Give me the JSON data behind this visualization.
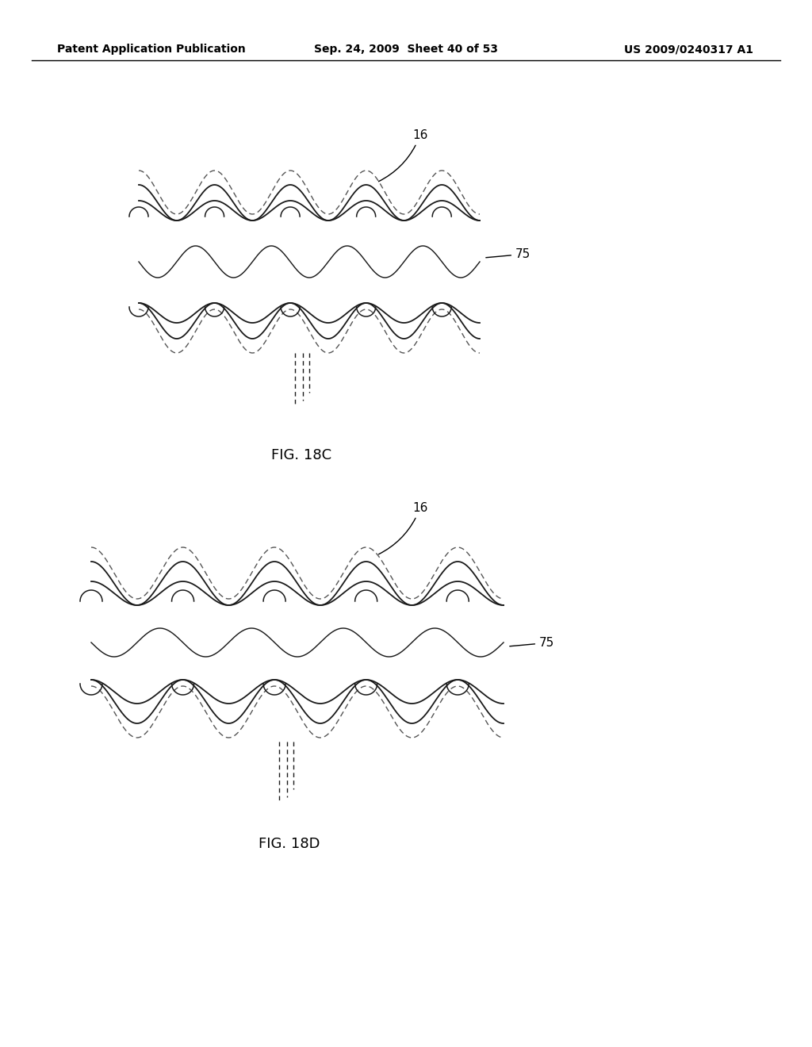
{
  "bg_color": "#ffffff",
  "line_color": "#1a1a1a",
  "dash_color": "#555555",
  "header_left": "Patent Application Publication",
  "header_mid": "Sep. 24, 2009  Sheet 40 of 53",
  "header_right": "US 2009/0240317 A1",
  "fig_label_C": "FIG. 18C",
  "fig_label_D": "FIG. 18D",
  "label_16": "16",
  "label_75": "75",
  "lw": 1.4,
  "dashed_lw": 1.0
}
